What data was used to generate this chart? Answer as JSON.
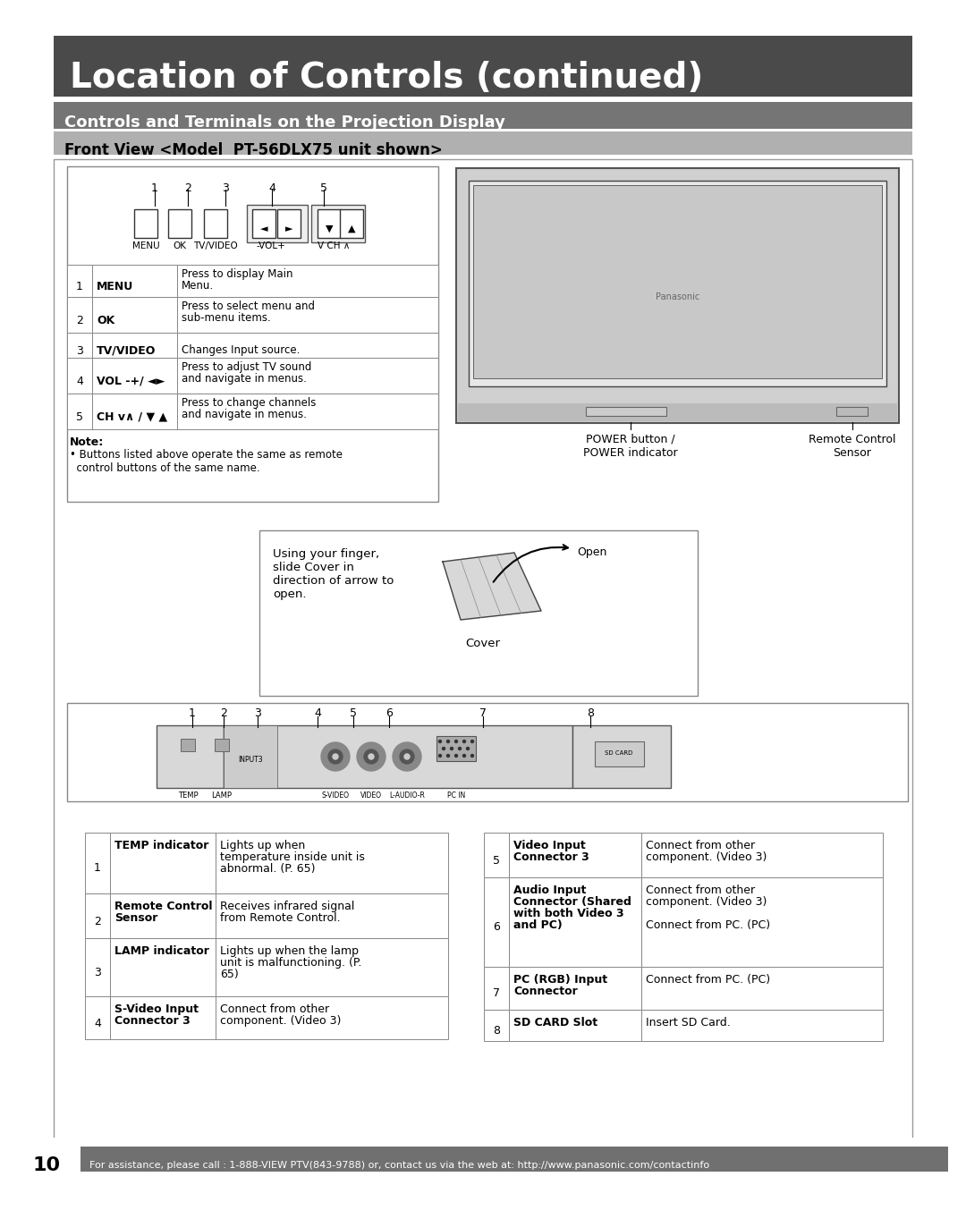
{
  "bg_color": "#ffffff",
  "title_bg": "#4a4a4a",
  "title_text": "Location of Controls (continued)",
  "title_color": "#ffffff",
  "subtitle1_bg": "#757575",
  "subtitle1_text": "Controls and Terminals on the Projection Display",
  "subtitle1_color": "#ffffff",
  "subtitle2_bg": "#b0b0b0",
  "subtitle2_text": "Front View <Model  PT-56DLX75 unit shown>",
  "subtitle2_color": "#000000",
  "front_table": [
    [
      "1",
      "MENU",
      "Press to display Main\nMenu."
    ],
    [
      "2",
      "OK",
      "Press to select menu and\nsub-menu items."
    ],
    [
      "3",
      "TV/VIDEO",
      "Changes Input source."
    ],
    [
      "4",
      "VOL -+/ ◄►",
      "Press to adjust TV sound\nand navigate in menus."
    ],
    [
      "5",
      "CH v∧ / ▼ ▲",
      "Press to change channels\nand navigate in menus."
    ]
  ],
  "note_bold": "Note:",
  "note_body": "• Buttons listed above operate the same as remote\n  control buttons of the same name.",
  "cover_caption": "Using your finger,\nslide Cover in\ndirection of arrow to\nopen.",
  "cover_label": "Cover",
  "open_label": "Open",
  "power_label": "POWER button /\nPOWER indicator",
  "remote_label": "Remote Control\nSensor",
  "bottom_table_left": [
    [
      "1",
      "TEMP indicator",
      "Lights up when\ntemperature inside unit is\nabnormal. (P. 65)"
    ],
    [
      "2",
      "Remote Control\nSensor",
      "Receives infrared signal\nfrom Remote Control."
    ],
    [
      "3",
      "LAMP indicator",
      "Lights up when the lamp\nunit is malfunctioning. (P.\n65)"
    ],
    [
      "4",
      "S-Video Input\nConnector 3",
      "Connect from other\ncomponent. (Video 3)"
    ]
  ],
  "bottom_table_right": [
    [
      "5",
      "Video Input\nConnector 3",
      "Connect from other\ncomponent. (Video 3)"
    ],
    [
      "6",
      "Audio Input\nConnector (Shared\nwith both Video 3\nand PC)",
      "Connect from other\ncomponent. (Video 3)\n\nConnect from PC. (PC)"
    ],
    [
      "7",
      "PC (RGB) Input\nConnector",
      "Connect from PC. (PC)"
    ],
    [
      "8",
      "SD CARD Slot",
      "Insert SD Card."
    ]
  ],
  "footer_bg": "#707070",
  "footer_text": "For assistance, please call : 1-888-VIEW PTV(843-9788) or, contact us via the web at: http://www.panasonic.com/contactinfo",
  "footer_color": "#ffffff",
  "page_num": "10"
}
